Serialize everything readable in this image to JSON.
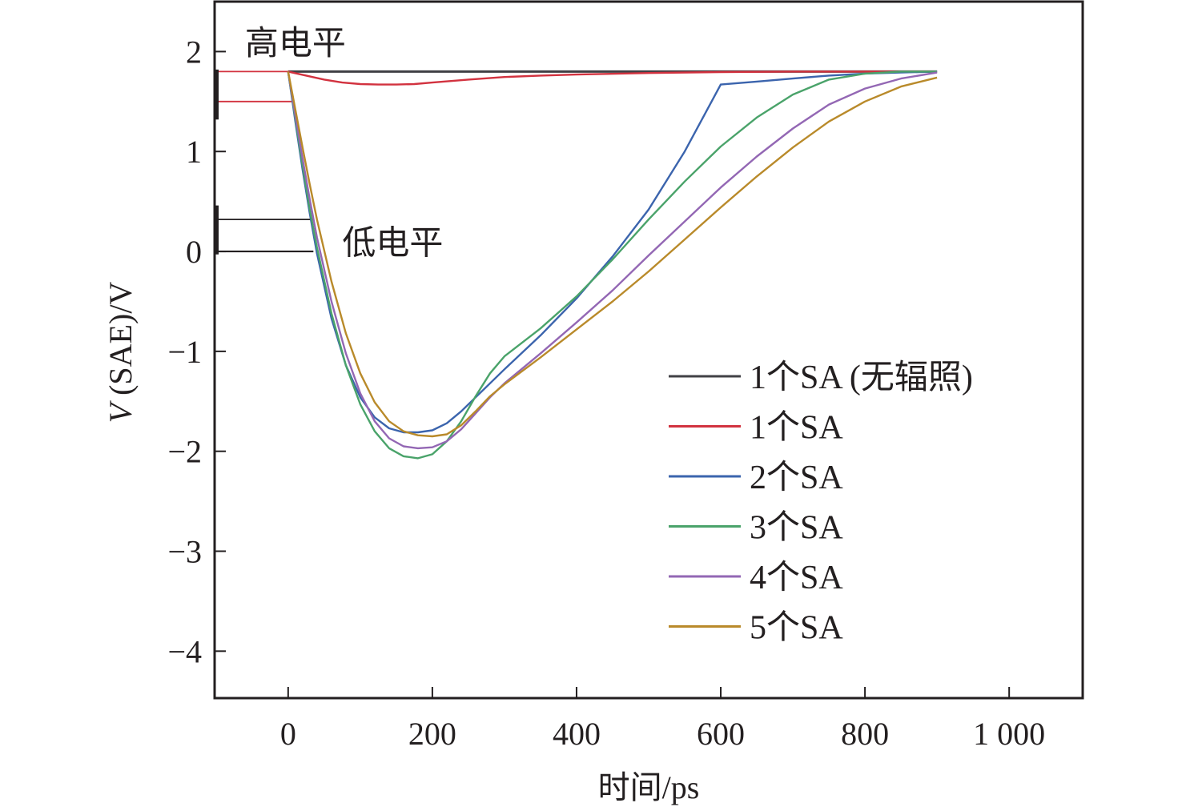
{
  "chart_data": {
    "type": "line",
    "title": "",
    "xlabel": "时间/ps",
    "ylabel_italic": "V",
    "ylabel_rest": " (SAE)/V",
    "ylabel": "V (SAE)/V",
    "xlim": [
      -102,
      1102
    ],
    "ylim": [
      -4.47,
      2.5
    ],
    "x_ticks": [
      0,
      200,
      400,
      600,
      800,
      1000
    ],
    "x_tick_labels": [
      "0",
      "200",
      "400",
      "600",
      "800",
      "1 000"
    ],
    "y_ticks": [
      2,
      1,
      0,
      -1,
      -2,
      -3,
      -4
    ],
    "y_tick_labels": [
      "2",
      "1",
      "0",
      "−1",
      "−2",
      "−3",
      "−4"
    ],
    "grid": false,
    "legend_position": "center-right",
    "annotations": [
      {
        "text": "高电平",
        "x": -60,
        "y": 2.1
      },
      {
        "text": "低电平",
        "x": 75,
        "y": 0.1
      }
    ],
    "level_markers": [
      {
        "name": "high-level-upper",
        "y": 1.8,
        "x_end": 5,
        "color": "#d2323f"
      },
      {
        "name": "high-level-lower",
        "y": 1.5,
        "x_end": 5,
        "color": "#d2323f"
      },
      {
        "name": "low-level-upper",
        "y": 0.32,
        "x_end": 35,
        "color": "#231f20"
      },
      {
        "name": "low-level-lower",
        "y": 0.0,
        "x_end": 35,
        "color": "#231f20"
      }
    ],
    "series": [
      {
        "name": "1个SA (无辐照)",
        "color": "#404045",
        "x": [
          0,
          100,
          200,
          300,
          400,
          500,
          600,
          700,
          800,
          900
        ],
        "y": [
          1.8,
          1.8,
          1.8,
          1.8,
          1.8,
          1.8,
          1.8,
          1.8,
          1.8,
          1.8
        ]
      },
      {
        "name": "1个SA",
        "color": "#d2323f",
        "x": [
          0,
          25,
          50,
          75,
          100,
          125,
          150,
          175,
          200,
          250,
          300,
          350,
          400,
          500,
          600,
          700,
          800,
          900
        ],
        "y": [
          1.8,
          1.76,
          1.72,
          1.69,
          1.675,
          1.67,
          1.67,
          1.675,
          1.69,
          1.72,
          1.745,
          1.76,
          1.77,
          1.785,
          1.795,
          1.8,
          1.8,
          1.8
        ]
      },
      {
        "name": "2个SA",
        "color": "#3b64ad",
        "x": [
          0,
          10,
          20,
          30,
          40,
          60,
          80,
          100,
          120,
          140,
          160,
          180,
          200,
          220,
          240,
          260,
          280,
          300,
          350,
          400,
          450,
          500,
          550,
          600,
          650,
          700,
          750,
          800,
          850,
          900
        ],
        "y": [
          1.8,
          1.3,
          0.82,
          0.38,
          -0.02,
          -0.67,
          -1.14,
          -1.46,
          -1.66,
          -1.77,
          -1.81,
          -1.81,
          -1.79,
          -1.72,
          -1.6,
          -1.46,
          -1.32,
          -1.18,
          -0.84,
          -0.47,
          -0.05,
          0.42,
          1.0,
          1.67,
          1.7,
          1.73,
          1.76,
          1.78,
          1.79,
          1.8
        ]
      },
      {
        "name": "3个SA",
        "color": "#4aa36a",
        "x": [
          0,
          10,
          20,
          30,
          40,
          60,
          80,
          100,
          120,
          140,
          160,
          180,
          200,
          220,
          240,
          260,
          280,
          300,
          350,
          400,
          450,
          500,
          550,
          600,
          650,
          700,
          750,
          800,
          850,
          900
        ],
        "y": [
          1.8,
          1.33,
          0.86,
          0.42,
          0.04,
          -0.62,
          -1.14,
          -1.53,
          -1.8,
          -1.97,
          -2.05,
          -2.07,
          -2.03,
          -1.9,
          -1.7,
          -1.45,
          -1.22,
          -1.05,
          -0.77,
          -0.45,
          -0.08,
          0.32,
          0.7,
          1.05,
          1.34,
          1.57,
          1.72,
          1.78,
          1.8,
          1.8
        ]
      },
      {
        "name": "4个SA",
        "color": "#9367b4",
        "x": [
          0,
          10,
          20,
          30,
          40,
          60,
          80,
          100,
          120,
          140,
          160,
          180,
          200,
          220,
          240,
          260,
          280,
          300,
          350,
          400,
          450,
          500,
          550,
          600,
          650,
          700,
          750,
          800,
          850,
          900
        ],
        "y": [
          1.8,
          1.36,
          0.93,
          0.52,
          0.14,
          -0.5,
          -1.02,
          -1.42,
          -1.7,
          -1.87,
          -1.95,
          -1.97,
          -1.96,
          -1.9,
          -1.78,
          -1.62,
          -1.46,
          -1.32,
          -1.02,
          -0.71,
          -0.39,
          -0.04,
          0.3,
          0.64,
          0.95,
          1.23,
          1.47,
          1.63,
          1.73,
          1.79
        ]
      },
      {
        "name": "5个SA",
        "color": "#b98a2a",
        "x": [
          0,
          10,
          20,
          30,
          40,
          60,
          80,
          100,
          120,
          140,
          160,
          180,
          200,
          220,
          240,
          260,
          280,
          300,
          350,
          400,
          450,
          500,
          550,
          600,
          650,
          700,
          750,
          800,
          850,
          900
        ],
        "y": [
          1.8,
          1.42,
          1.04,
          0.67,
          0.32,
          -0.3,
          -0.82,
          -1.22,
          -1.51,
          -1.7,
          -1.8,
          -1.84,
          -1.85,
          -1.83,
          -1.74,
          -1.6,
          -1.45,
          -1.33,
          -1.06,
          -0.78,
          -0.5,
          -0.2,
          0.12,
          0.44,
          0.75,
          1.04,
          1.3,
          1.5,
          1.65,
          1.74
        ]
      }
    ]
  }
}
